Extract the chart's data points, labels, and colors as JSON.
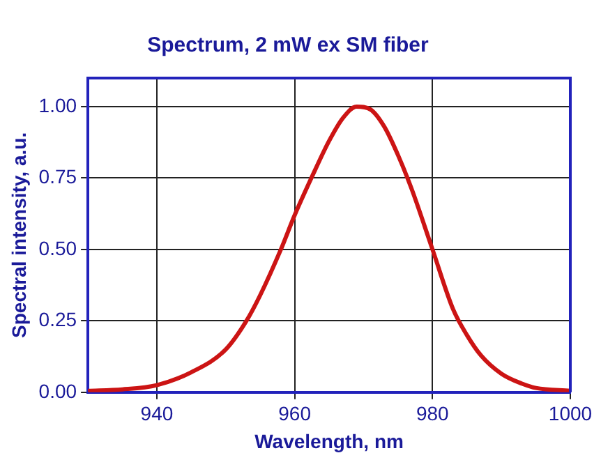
{
  "chart_data": {
    "type": "line",
    "title": "Spectrum, 2 mW ex SM fiber",
    "xlabel": "Wavelength, nm",
    "ylabel": "Spectral intensity, a.u.",
    "x": [
      930,
      935,
      940,
      945,
      950,
      953,
      955,
      958,
      960,
      963,
      965,
      967,
      969,
      971,
      973,
      975,
      977,
      980,
      983,
      985,
      987,
      990,
      993,
      995,
      1000
    ],
    "series": [
      {
        "color": "#cc1414",
        "values": [
          0.005,
          0.01,
          0.025,
          0.07,
          0.15,
          0.25,
          0.34,
          0.5,
          0.62,
          0.78,
          0.88,
          0.96,
          1.0,
          0.99,
          0.93,
          0.83,
          0.71,
          0.5,
          0.29,
          0.2,
          0.13,
          0.065,
          0.03,
          0.015,
          0.005
        ]
      }
    ],
    "xlim": [
      930,
      1000
    ],
    "xticks": [
      940,
      960,
      980,
      1000
    ],
    "ylim": [
      0,
      1.1
    ],
    "yticks": [
      {
        "value": 0,
        "label": "0.00"
      },
      {
        "value": 0.25,
        "label": "0.25"
      },
      {
        "value": 0.5,
        "label": "0.50"
      },
      {
        "value": 0.75,
        "label": "0.75"
      },
      {
        "value": 1,
        "label": "1.00"
      }
    ],
    "grid": true,
    "marker": "none",
    "line_style": "solid",
    "legend": false
  }
}
